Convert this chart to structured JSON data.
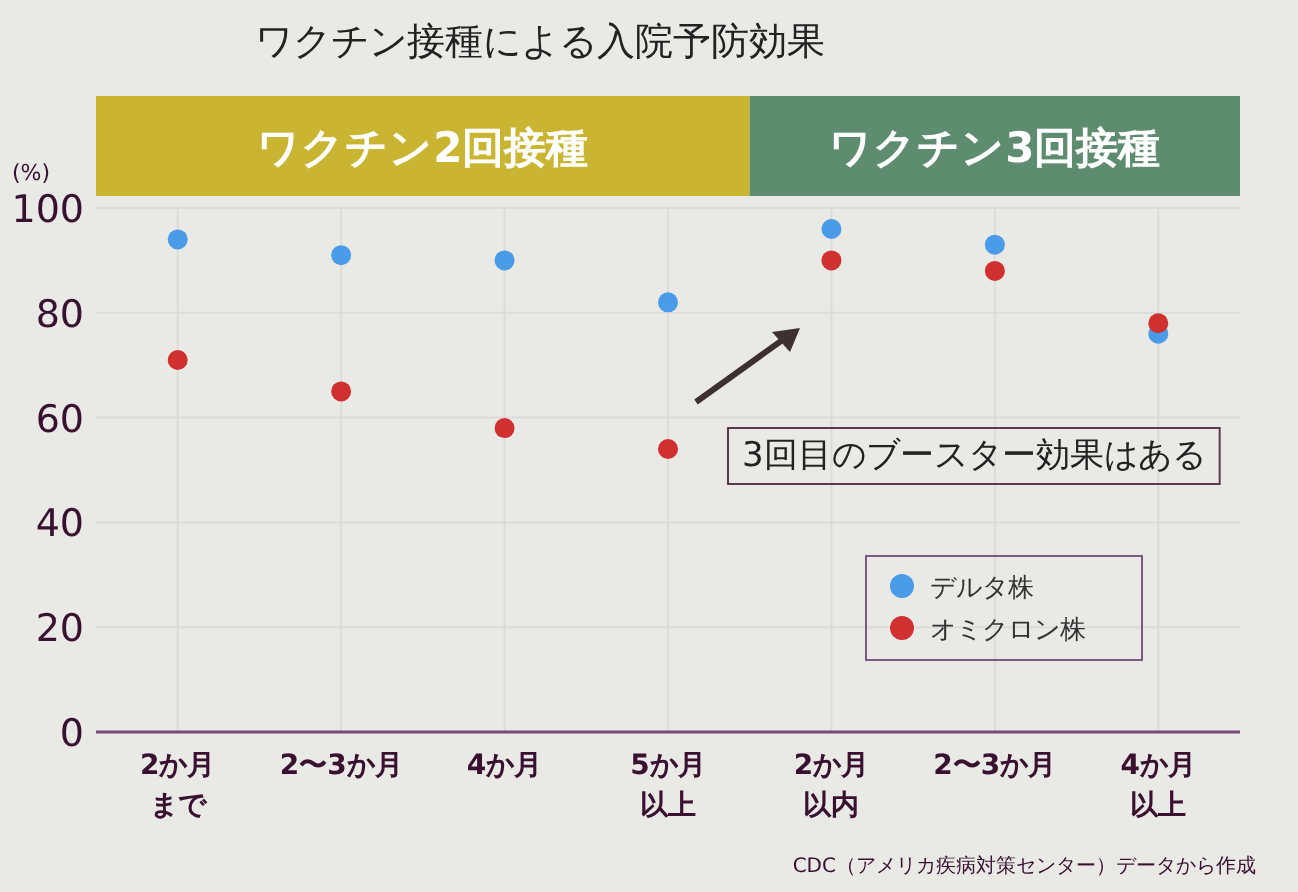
{
  "chart_data": {
    "type": "scatter",
    "title": "ワクチン接種による入院予防効果",
    "ylabel": "(%)",
    "categories": [
      "2か月まで",
      "2〜3か月",
      "4か月",
      "5か月以上",
      "2か月以内",
      "2〜3か月",
      "4か月以上"
    ],
    "series": [
      {
        "name": "デルタ株",
        "color": "#4a9be8",
        "values": [
          94,
          91,
          90,
          82,
          96,
          93,
          76
        ]
      },
      {
        "name": "オミクロン株",
        "color": "#d03030",
        "values": [
          71,
          65,
          58,
          54,
          90,
          88,
          78
        ]
      }
    ],
    "ylim": [
      0,
      100
    ],
    "yticks": [
      0,
      20,
      40,
      60,
      80,
      100
    ],
    "annotations": [
      "ワクチン2回接種",
      "ワクチン3回接種",
      "3回目のブースター効果はある",
      "CDC（アメリカ疾病対策センター）データから作成"
    ],
    "grid": true,
    "legend": "bottom right",
    "marker": "circle"
  }
}
